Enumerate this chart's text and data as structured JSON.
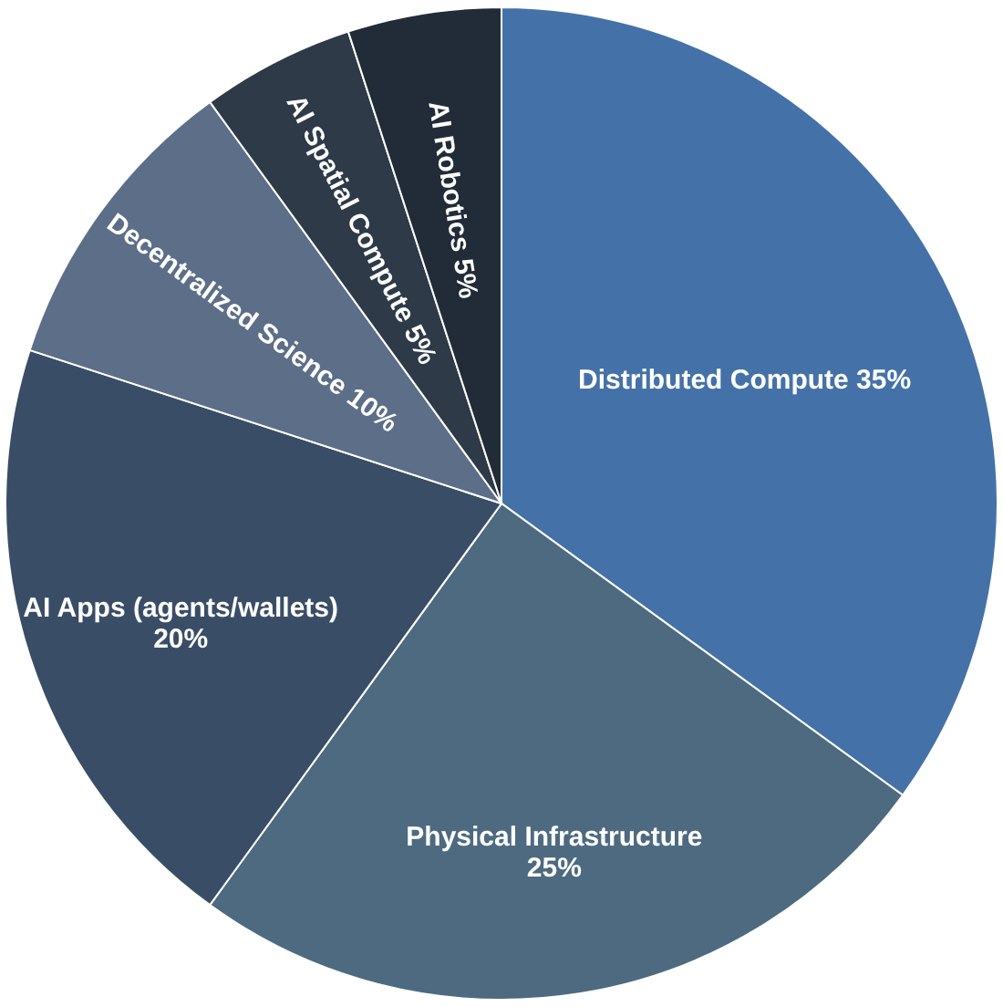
{
  "chart_data": {
    "type": "pie",
    "categories": [
      "Distributed Compute",
      "Physical Infrastructure",
      "AI Apps (agents/wallets)",
      "Decentralized Science",
      "AI Spatial Compute",
      "AI Robotics"
    ],
    "values": [
      35,
      25,
      20,
      10,
      5,
      5
    ],
    "value_labels": [
      "35%",
      "25%",
      "20%",
      "10%",
      "5%",
      "5%"
    ],
    "colors": [
      "#4472a8",
      "#4e6a80",
      "#3a4d66",
      "#5d6e88",
      "#2e3a48",
      "#222c38"
    ]
  }
}
